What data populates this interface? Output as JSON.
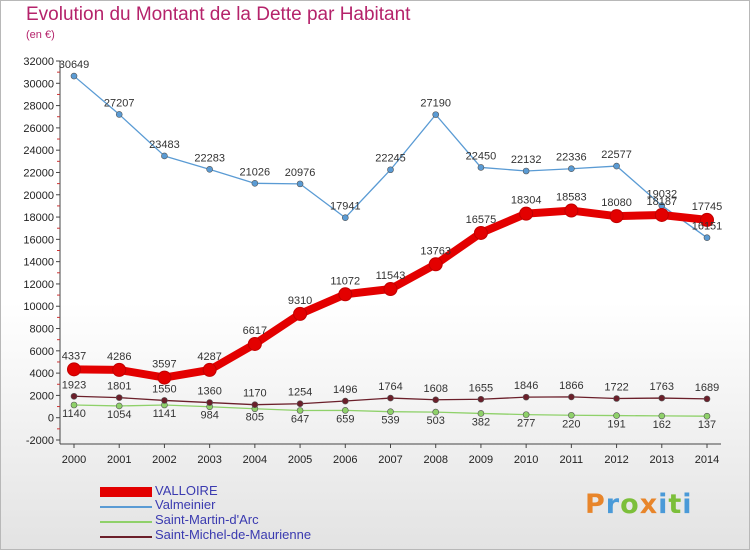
{
  "header": {
    "title": "Evolution du Montant de la Dette par Habitant",
    "subtitle": "(en €)"
  },
  "logo": {
    "text": "Proxiti",
    "colors": [
      "#e8852a",
      "#4a9ad8",
      "#7cbf3a",
      "#e8852a",
      "#4a9ad8",
      "#7cbf3a",
      "#4a9ad8"
    ]
  },
  "chart_data": {
    "type": "line",
    "title": "Evolution du Montant de la Dette par Habitant",
    "subtitle": "(en €)",
    "xlabel": "",
    "ylabel": "",
    "categories": [
      "2000",
      "2001",
      "2002",
      "2003",
      "2004",
      "2005",
      "2006",
      "2007",
      "2008",
      "2009",
      "2010",
      "2011",
      "2012",
      "2013",
      "2014"
    ],
    "ylim": [
      -2000,
      32000
    ],
    "yticks": [
      -2000,
      0,
      2000,
      4000,
      6000,
      8000,
      10000,
      12000,
      14000,
      16000,
      18000,
      20000,
      22000,
      24000,
      26000,
      28000,
      30000,
      32000
    ],
    "grid": false,
    "legend_position": "bottom-left",
    "series": [
      {
        "name": "VALLOIRE",
        "color": "#e30000",
        "values": [
          4337,
          4286,
          3597,
          4287,
          6617,
          9310,
          11072,
          11543,
          13763,
          16575,
          18304,
          18583,
          18080,
          18187,
          17745
        ],
        "labels": [
          "4337",
          "4286",
          "3597",
          "4287",
          "6617",
          "9310",
          "11072",
          "11543",
          "13763",
          "16575",
          "18304",
          "18583",
          "18080",
          "18187",
          "17745"
        ]
      },
      {
        "name": "Valmeinier",
        "color": "#5a9bd4",
        "values": [
          30649,
          27207,
          23483,
          22283,
          21026,
          20976,
          17941,
          22245,
          27190,
          22450,
          22132,
          22336,
          22577,
          19032,
          16151
        ],
        "labels": [
          "30649",
          "27207",
          "23483",
          "22283",
          "21026",
          "20976",
          "17941",
          "22245",
          "27190",
          "22450",
          "22132",
          "22336",
          "22577",
          "19032",
          "16151"
        ]
      },
      {
        "name": "Saint-Martin-d'Arc",
        "color": "#8fd16a",
        "values": [
          1140,
          1054,
          1141,
          984,
          805,
          647,
          659,
          539,
          503,
          382,
          277,
          220,
          191,
          162,
          137
        ],
        "labels": [
          "1140",
          "1054",
          "1141",
          "984",
          "805",
          "647",
          "659",
          "539",
          "503",
          "382",
          "277",
          "220",
          "191",
          "162",
          "137"
        ]
      },
      {
        "name": "Saint-Michel-de-Maurienne",
        "color": "#6b1f2a",
        "values": [
          1923,
          1801,
          1550,
          1360,
          1170,
          1254,
          1496,
          1764,
          1608,
          1655,
          1846,
          1866,
          1722,
          1763,
          1689
        ],
        "labels": [
          "1923",
          "1801",
          "1550",
          "1360",
          "1170",
          "1254",
          "1496",
          "1764",
          "1608",
          "1655",
          "1846",
          "1866",
          "1722",
          "1763",
          "1689"
        ]
      }
    ]
  }
}
